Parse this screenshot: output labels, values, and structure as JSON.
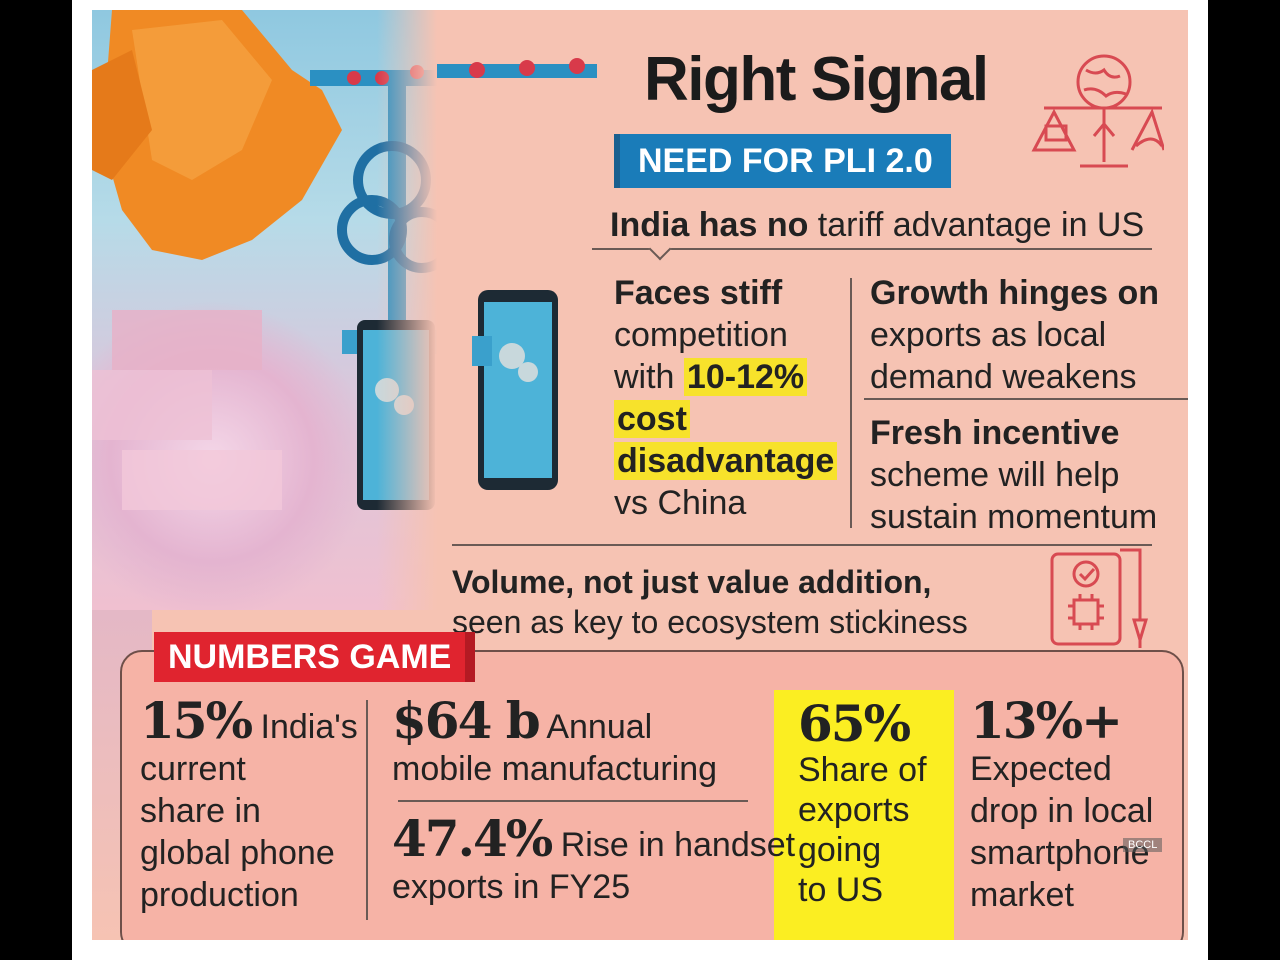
{
  "header": {
    "title": "Right Signal",
    "tag": "NEED FOR PLI 2.0",
    "intro_bold": "India has no",
    "intro_rest": " tariff advantage in US"
  },
  "points": {
    "competition": {
      "line1": "Faces stiff",
      "line2": "competition",
      "line3_pre": "with ",
      "hl1": "10-12%",
      "hl2": "cost",
      "hl3": "disadvantage",
      "line_end": "vs China"
    },
    "growth": {
      "bold": "Growth hinges on",
      "line2": "exports as local",
      "line3": "demand weakens"
    },
    "incentive": {
      "bold": "Fresh incentive",
      "line2": "scheme will help",
      "line3": "sustain momentum"
    },
    "volume": {
      "bold": "Volume, not just value addition,",
      "line2": "seen as key to ecosystem stickiness"
    }
  },
  "numbers": {
    "tag": "NUMBERS GAME",
    "share": {
      "value": "15%",
      "l1": " India's",
      "l2": "current",
      "l3": "share in",
      "l4": "global phone",
      "l5": "production"
    },
    "manufacturing": {
      "value": "$64 b",
      "l1": " Annual",
      "l2": "mobile manufacturing"
    },
    "rise": {
      "value": "47.4%",
      "l1": " Rise in handset",
      "l2": "exports in FY25"
    },
    "us_share": {
      "value": "65%",
      "l1": "Share of",
      "l2": "exports",
      "l3": "going",
      "l4": "to US"
    },
    "drop": {
      "value": "13%+",
      "l1": "Expected",
      "l2": "drop in local",
      "l3": "smartphone",
      "l4": "market"
    }
  },
  "watermark": "BCCL",
  "icons": [
    "globe-scale-icon",
    "phone-chip-icon"
  ],
  "colors": {
    "panel": "#f6c3b3",
    "blue_tag": "#1a7cb9",
    "red_tag": "#e0242f",
    "highlight": "#f7e22b",
    "icon_red": "#d84a52"
  }
}
